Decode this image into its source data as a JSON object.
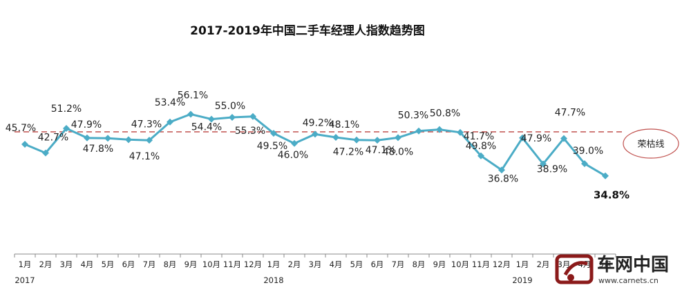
{
  "chart_data": {
    "type": "line",
    "title": "2017-2019年中国二手车经理人指数趋势图",
    "categories": [
      "1月",
      "2月",
      "3月",
      "4月",
      "5月",
      "6月",
      "7月",
      "8月",
      "9月",
      "10月",
      "11月",
      "12月",
      "1月",
      "2月",
      "3月",
      "4月",
      "5月",
      "6月",
      "7月",
      "8月",
      "9月",
      "10月",
      "11月",
      "12月",
      "1月",
      "2月",
      "3月",
      "4月",
      "5月"
    ],
    "year_labels": [
      {
        "index": 0,
        "label": "2017"
      },
      {
        "index": 12,
        "label": "2018"
      },
      {
        "index": 24,
        "label": "2019"
      }
    ],
    "values": [
      45.7,
      42.7,
      51.2,
      47.9,
      47.8,
      47.3,
      47.1,
      53.4,
      56.1,
      54.4,
      55.0,
      55.3,
      49.5,
      46.0,
      49.2,
      48.1,
      47.2,
      47.1,
      48.0,
      50.3,
      50.8,
      49.8,
      41.7,
      36.8,
      47.9,
      38.9,
      47.7,
      39.0,
      34.8
    ],
    "value_labels": [
      "45.7%",
      "42.7%",
      "51.2%",
      "47.9%",
      "47.8%",
      "47.3%",
      "47.1%",
      "53.4%",
      "56.1%",
      "54.4%",
      "55.0%",
      "55.3%",
      "49.5%",
      "46.0%",
      "49.2%",
      "48.1%",
      "47.2%",
      "47.1%",
      "48.0%",
      "50.3%",
      "50.8%",
      "49.8%",
      "41.7%",
      "36.8%",
      "47.9%",
      "38.9%",
      "47.7%",
      "39.0%",
      "34.8%"
    ],
    "reference_line": {
      "value": 50,
      "label": "荣枯线",
      "color": "#c0504d"
    },
    "series_color": "#4BACC6",
    "xlabel": "",
    "ylabel": "",
    "ylim": [
      30,
      60
    ],
    "grid": false,
    "legend": "none"
  },
  "watermark": {
    "text": "车网中国",
    "url": "www.carnets.cn",
    "color": "#8b1a1a"
  }
}
